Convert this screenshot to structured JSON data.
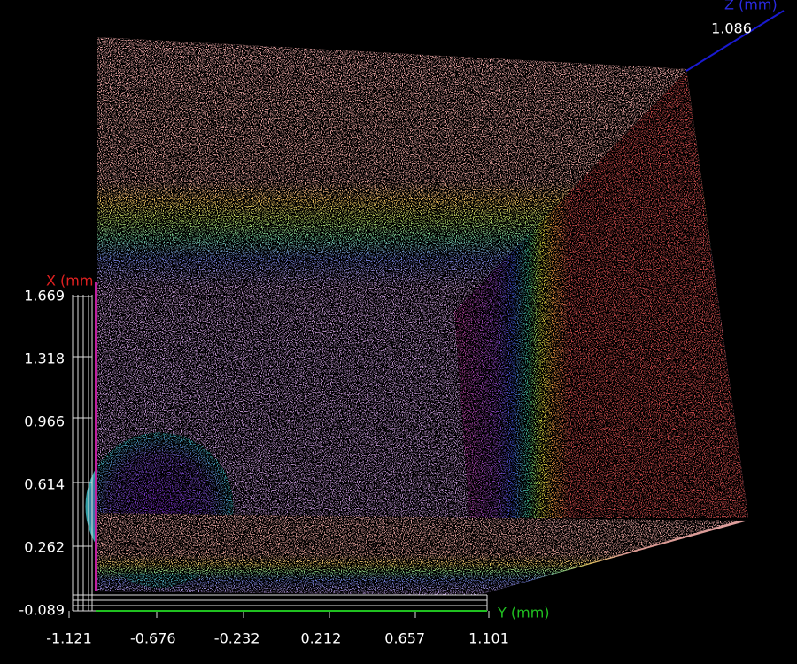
{
  "viewer": {
    "axes": {
      "x": {
        "title": "X (mm",
        "ticks": [
          "1.669",
          "1.318",
          "0.966",
          "0.614",
          "0.262",
          "-0.089"
        ]
      },
      "y": {
        "title": "Y (mm)",
        "ticks": [
          "-1.121",
          "-0.676",
          "-0.232",
          "0.212",
          "0.657",
          "1.101"
        ]
      },
      "z": {
        "title": "Z (mm)",
        "ticks": [
          "1.086"
        ]
      }
    }
  }
}
